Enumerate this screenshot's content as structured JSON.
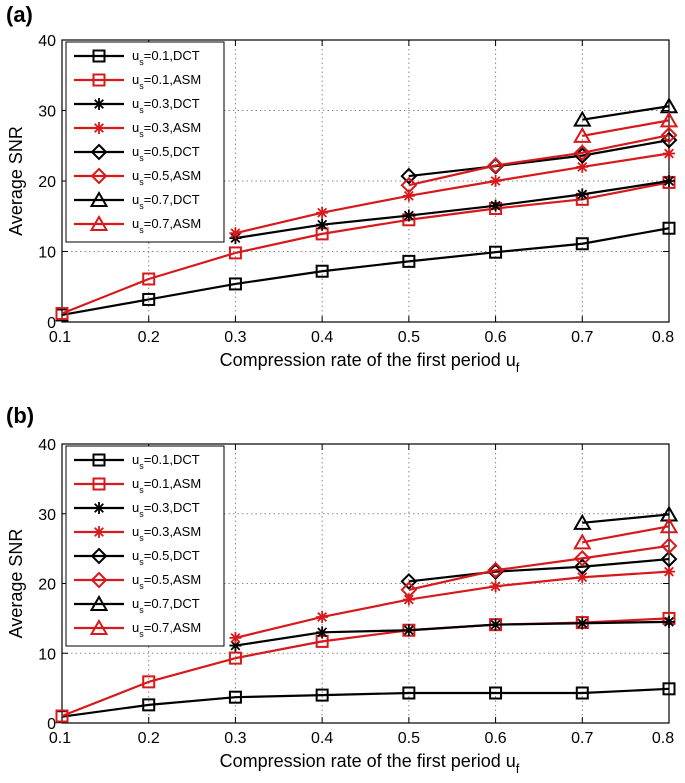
{
  "chart_data": [
    {
      "type": "line",
      "panel_label": "(a)",
      "xlabel": "Compression rate of the first period u",
      "xlabel_sub": "f",
      "ylabel": "Average SNR",
      "xlim": [
        0.1,
        0.8
      ],
      "ylim": [
        0,
        40
      ],
      "xticks": [
        "0.1",
        "0.2",
        "0.3",
        "0.4",
        "0.5",
        "0.6",
        "0.7",
        "0.8"
      ],
      "yticks": [
        "0",
        "10",
        "20",
        "30",
        "40"
      ],
      "grid": true,
      "legend_position": "top-left",
      "series": [
        {
          "name": "u_s=0.1,DCT",
          "label_prefix": "u",
          "label_sub": "s",
          "label_rest": "=0.1,DCT",
          "color": "#000000",
          "marker": "square",
          "x": [
            0.1,
            0.2,
            0.3,
            0.4,
            0.5,
            0.6,
            0.7,
            0.8
          ],
          "values": [
            1.0,
            3.2,
            5.4,
            7.2,
            8.6,
            9.9,
            11.1,
            13.3
          ]
        },
        {
          "name": "u_s=0.1,ASM",
          "label_prefix": "u",
          "label_sub": "s",
          "label_rest": "=0.1,ASM",
          "color": "#d7191c",
          "marker": "square",
          "x": [
            0.1,
            0.2,
            0.3,
            0.4,
            0.5,
            0.6,
            0.7,
            0.8
          ],
          "values": [
            1.2,
            6.1,
            9.8,
            12.5,
            14.5,
            16.1,
            17.4,
            19.8
          ]
        },
        {
          "name": "u_s=0.3,DCT",
          "label_prefix": "u",
          "label_sub": "s",
          "label_rest": "=0.3,DCT",
          "color": "#000000",
          "marker": "star",
          "x": [
            0.3,
            0.4,
            0.5,
            0.6,
            0.7,
            0.8
          ],
          "values": [
            11.9,
            13.8,
            15.1,
            16.5,
            18.1,
            20.0
          ]
        },
        {
          "name": "u_s=0.3,ASM",
          "label_prefix": "u",
          "label_sub": "s",
          "label_rest": "=0.3,ASM",
          "color": "#d7191c",
          "marker": "star",
          "x": [
            0.3,
            0.4,
            0.5,
            0.6,
            0.7,
            0.8
          ],
          "values": [
            12.6,
            15.5,
            17.9,
            20.0,
            22.0,
            23.9
          ]
        },
        {
          "name": "u_s=0.5,DCT",
          "label_prefix": "u",
          "label_sub": "s",
          "label_rest": "=0.5,DCT",
          "color": "#000000",
          "marker": "diamond",
          "x": [
            0.5,
            0.6,
            0.7,
            0.8
          ],
          "values": [
            20.7,
            22.1,
            23.6,
            25.8
          ]
        },
        {
          "name": "u_s=0.5,ASM",
          "label_prefix": "u",
          "label_sub": "s",
          "label_rest": "=0.5,ASM",
          "color": "#d7191c",
          "marker": "diamond",
          "x": [
            0.5,
            0.6,
            0.7,
            0.8
          ],
          "values": [
            19.4,
            22.2,
            24.0,
            26.5
          ]
        },
        {
          "name": "u_s=0.7,DCT",
          "label_prefix": "u",
          "label_sub": "s",
          "label_rest": "=0.7,DCT",
          "color": "#000000",
          "marker": "triangle",
          "x": [
            0.7,
            0.8
          ],
          "values": [
            28.7,
            30.6
          ]
        },
        {
          "name": "u_s=0.7,ASM",
          "label_prefix": "u",
          "label_sub": "s",
          "label_rest": "=0.7,ASM",
          "color": "#d7191c",
          "marker": "triangle",
          "x": [
            0.7,
            0.8
          ],
          "values": [
            26.4,
            28.6
          ]
        }
      ]
    },
    {
      "type": "line",
      "panel_label": "(b)",
      "xlabel": "Compression rate of the first period u",
      "xlabel_sub": "f",
      "ylabel": "Average SNR",
      "xlim": [
        0.1,
        0.8
      ],
      "ylim": [
        0,
        40
      ],
      "xticks": [
        "0.1",
        "0.2",
        "0.3",
        "0.4",
        "0.5",
        "0.6",
        "0.7",
        "0.8"
      ],
      "yticks": [
        "0",
        "10",
        "20",
        "30",
        "40"
      ],
      "grid": true,
      "legend_position": "top-left",
      "series": [
        {
          "name": "u_s=0.1,DCT",
          "label_prefix": "u",
          "label_sub": "s",
          "label_rest": "=0.1,DCT",
          "color": "#000000",
          "marker": "square",
          "x": [
            0.1,
            0.2,
            0.3,
            0.4,
            0.5,
            0.6,
            0.7,
            0.8
          ],
          "values": [
            0.9,
            2.6,
            3.7,
            4.0,
            4.3,
            4.3,
            4.3,
            4.9
          ]
        },
        {
          "name": "u_s=0.1,ASM",
          "label_prefix": "u",
          "label_sub": "s",
          "label_rest": "=0.1,ASM",
          "color": "#d7191c",
          "marker": "square",
          "x": [
            0.1,
            0.2,
            0.3,
            0.4,
            0.5,
            0.6,
            0.7,
            0.8
          ],
          "values": [
            1.0,
            5.9,
            9.3,
            11.7,
            13.3,
            14.1,
            14.4,
            15.0
          ]
        },
        {
          "name": "u_s=0.3,DCT",
          "label_prefix": "u",
          "label_sub": "s",
          "label_rest": "=0.3,DCT",
          "color": "#000000",
          "marker": "star",
          "x": [
            0.3,
            0.4,
            0.5,
            0.6,
            0.7,
            0.8
          ],
          "values": [
            11.1,
            13.0,
            13.3,
            14.1,
            14.3,
            14.5
          ]
        },
        {
          "name": "u_s=0.3,ASM",
          "label_prefix": "u",
          "label_sub": "s",
          "label_rest": "=0.3,ASM",
          "color": "#d7191c",
          "marker": "star",
          "x": [
            0.3,
            0.4,
            0.5,
            0.6,
            0.7,
            0.8
          ],
          "values": [
            12.2,
            15.2,
            17.7,
            19.6,
            20.9,
            21.7
          ]
        },
        {
          "name": "u_s=0.5,DCT",
          "label_prefix": "u",
          "label_sub": "s",
          "label_rest": "=0.5,DCT",
          "color": "#000000",
          "marker": "diamond",
          "x": [
            0.5,
            0.6,
            0.7,
            0.8
          ],
          "values": [
            20.3,
            21.7,
            22.4,
            23.5
          ]
        },
        {
          "name": "u_s=0.5,ASM",
          "label_prefix": "u",
          "label_sub": "s",
          "label_rest": "=0.5,ASM",
          "color": "#d7191c",
          "marker": "diamond",
          "x": [
            0.5,
            0.6,
            0.7,
            0.8
          ],
          "values": [
            19.1,
            21.9,
            23.6,
            25.4
          ]
        },
        {
          "name": "u_s=0.7,DCT",
          "label_prefix": "u",
          "label_sub": "s",
          "label_rest": "=0.7,DCT",
          "color": "#000000",
          "marker": "triangle",
          "x": [
            0.7,
            0.8
          ],
          "values": [
            28.7,
            29.9
          ]
        },
        {
          "name": "u_s=0.7,ASM",
          "label_prefix": "u",
          "label_sub": "s",
          "label_rest": "=0.7,ASM",
          "color": "#d7191c",
          "marker": "triangle",
          "x": [
            0.7,
            0.8
          ],
          "values": [
            25.9,
            28.2
          ]
        }
      ]
    }
  ]
}
